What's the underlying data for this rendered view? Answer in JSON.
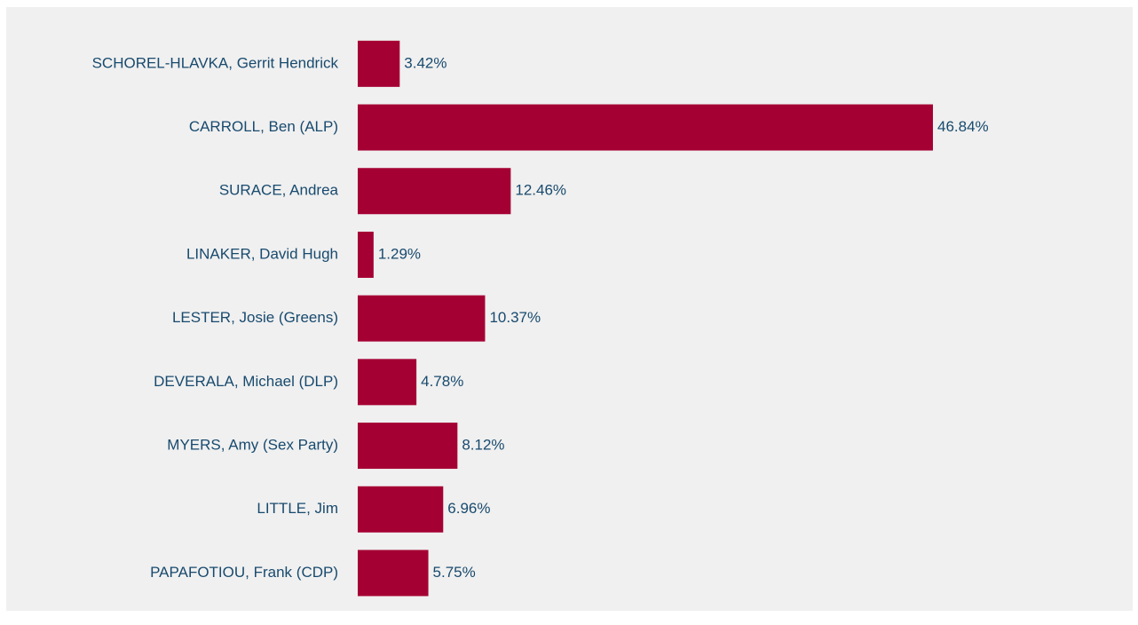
{
  "chart_data": {
    "type": "bar",
    "orientation": "horizontal",
    "categories": [
      "SCHOREL-HLAVKA, Gerrit Hendrick",
      "CARROLL, Ben (ALP)",
      "SURACE, Andrea",
      "LINAKER, David Hugh",
      "LESTER, Josie (Greens)",
      "DEVERALA, Michael (DLP)",
      "MYERS, Amy (Sex Party)",
      "LITTLE, Jim",
      "PAPAFOTIOU, Frank (CDP)"
    ],
    "values": [
      3.42,
      46.84,
      12.46,
      1.29,
      10.37,
      4.78,
      8.12,
      6.96,
      5.75
    ],
    "value_labels": [
      "3.42%",
      "46.84%",
      "12.46%",
      "1.29%",
      "10.37%",
      "4.78%",
      "8.12%",
      "6.96%",
      "5.75%"
    ],
    "color": "#a50034"
  }
}
